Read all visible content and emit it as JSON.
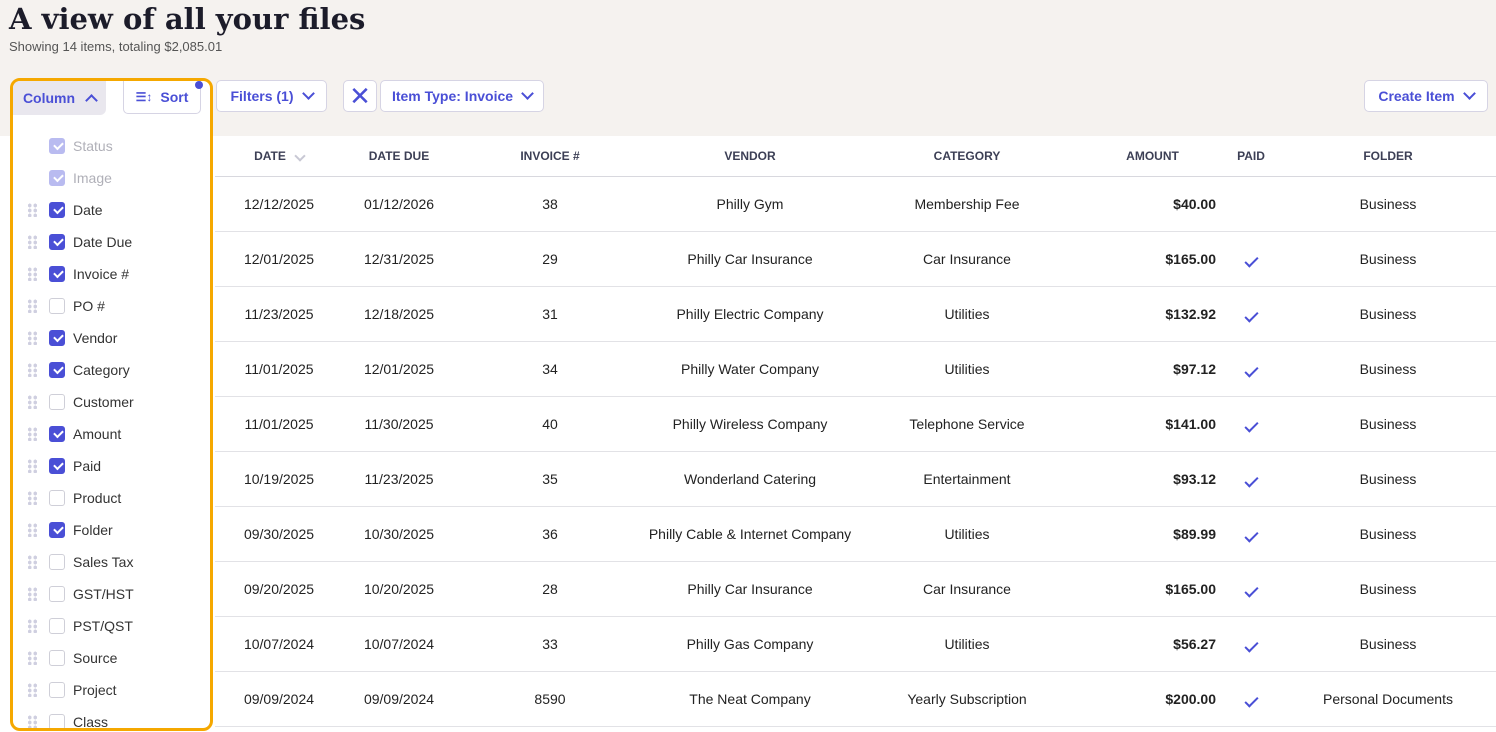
{
  "header": {
    "title": "A view of all your files",
    "subtitle": "Showing 14 items, totaling $2,085.01"
  },
  "toolbar": {
    "column_label": "Column",
    "sort_label": "Sort",
    "filters_label": "Filters (1)",
    "item_type_label": "Item Type: Invoice",
    "create_label": "Create Item"
  },
  "colors": {
    "accent": "#4a4fd6",
    "highlight": "#f5a800"
  },
  "columns_panel": [
    {
      "label": "Status",
      "checked": true,
      "disabled": true
    },
    {
      "label": "Image",
      "checked": true,
      "disabled": true
    },
    {
      "label": "Date",
      "checked": true
    },
    {
      "label": "Date Due",
      "checked": true
    },
    {
      "label": "Invoice #",
      "checked": true
    },
    {
      "label": "PO #",
      "checked": false
    },
    {
      "label": "Vendor",
      "checked": true
    },
    {
      "label": "Category",
      "checked": true
    },
    {
      "label": "Customer",
      "checked": false
    },
    {
      "label": "Amount",
      "checked": true
    },
    {
      "label": "Paid",
      "checked": true
    },
    {
      "label": "Product",
      "checked": false
    },
    {
      "label": "Folder",
      "checked": true
    },
    {
      "label": "Sales Tax",
      "checked": false
    },
    {
      "label": "GST/HST",
      "checked": false
    },
    {
      "label": "PST/QST",
      "checked": false
    },
    {
      "label": "Source",
      "checked": false
    },
    {
      "label": "Project",
      "checked": false
    },
    {
      "label": "Class",
      "checked": false
    }
  ],
  "table": {
    "headers": [
      "DATE",
      "DATE DUE",
      "INVOICE #",
      "VENDOR",
      "CATEGORY",
      "AMOUNT",
      "PAID",
      "FOLDER"
    ],
    "rows": [
      [
        "12/12/2025",
        "01/12/2026",
        "38",
        "Philly Gym",
        "Membership Fee",
        "$40.00",
        false,
        "Business"
      ],
      [
        "12/01/2025",
        "12/31/2025",
        "29",
        "Philly Car Insurance",
        "Car Insurance",
        "$165.00",
        true,
        "Business"
      ],
      [
        "11/23/2025",
        "12/18/2025",
        "31",
        "Philly Electric Company",
        "Utilities",
        "$132.92",
        true,
        "Business"
      ],
      [
        "11/01/2025",
        "12/01/2025",
        "34",
        "Philly Water Company",
        "Utilities",
        "$97.12",
        true,
        "Business"
      ],
      [
        "11/01/2025",
        "11/30/2025",
        "40",
        "Philly Wireless Company",
        "Telephone Service",
        "$141.00",
        true,
        "Business"
      ],
      [
        "10/19/2025",
        "11/23/2025",
        "35",
        "Wonderland Catering",
        "Entertainment",
        "$93.12",
        true,
        "Business"
      ],
      [
        "09/30/2025",
        "10/30/2025",
        "36",
        "Philly Cable & Internet Company",
        "Utilities",
        "$89.99",
        true,
        "Business"
      ],
      [
        "09/20/2025",
        "10/20/2025",
        "28",
        "Philly Car Insurance",
        "Car Insurance",
        "$165.00",
        true,
        "Business"
      ],
      [
        "10/07/2024",
        "10/07/2024",
        "33",
        "Philly Gas Company",
        "Utilities",
        "$56.27",
        true,
        "Business"
      ],
      [
        "09/09/2024",
        "09/09/2024",
        "8590",
        "The Neat Company",
        "Yearly Subscription",
        "$200.00",
        true,
        "Personal Documents"
      ]
    ]
  }
}
